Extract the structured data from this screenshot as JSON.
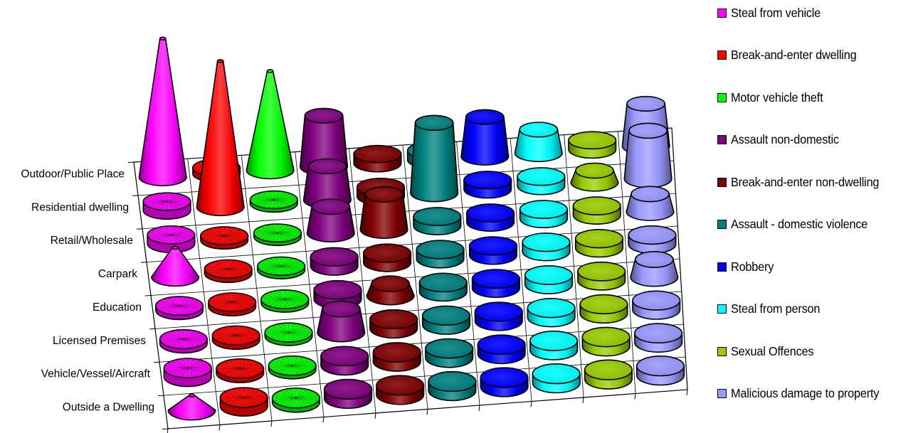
{
  "chart_data": {
    "type": "3d-column",
    "title": "",
    "xlabel": "",
    "ylabel": "",
    "categories": [
      "Outdoor/Public Place",
      "Residential dwelling",
      "Retail/Wholesale",
      "Carpark",
      "Education",
      "Licensed Premises",
      "Vehicle/Vessel/Aircraft",
      "Outside a Dwelling"
    ],
    "series": [
      {
        "name": "Steal from vehicle",
        "color": "#ff00ff",
        "shape": "cone",
        "values": [
          9.5,
          0.6,
          0.6,
          2.0,
          0.3,
          0.3,
          0.6,
          1.0
        ]
      },
      {
        "name": "Break-and-enter dwelling",
        "color": "#ff0000",
        "shape": "cone",
        "values": [
          0.4,
          10.0,
          0.3,
          0.3,
          0.3,
          0.3,
          0.3,
          0.6
        ]
      },
      {
        "name": "Motor vehicle theft",
        "color": "#00ff00",
        "shape": "cone",
        "values": [
          6.8,
          0.2,
          0.2,
          0.2,
          0.2,
          0.2,
          0.2,
          0.3
        ]
      },
      {
        "name": "Assault non-domestic",
        "color": "#800080",
        "shape": "truncated-cone",
        "values": [
          3.5,
          2.3,
          1.8,
          0.3,
          0.4,
          1.6,
          0.3,
          0.2
        ]
      },
      {
        "name": "Break-and-enter non-dwelling",
        "color": "#800000",
        "shape": "truncated-cone",
        "values": [
          0.2,
          0.3,
          2.4,
          0.3,
          0.8,
          0.3,
          0.3,
          0.2
        ]
      },
      {
        "name": "Assault - domestic violence",
        "color": "#008080",
        "shape": "truncated-cone",
        "values": [
          0.3,
          4.8,
          0.3,
          0.2,
          0.2,
          0.2,
          0.3,
          0.2
        ]
      },
      {
        "name": "Robbery",
        "color": "#0000ff",
        "shape": "truncated-cone",
        "values": [
          2.7,
          0.3,
          0.6,
          0.2,
          0.2,
          0.2,
          0.3,
          0.2
        ]
      },
      {
        "name": "Steal from person",
        "color": "#00ffff",
        "shape": "truncated-cone",
        "values": [
          1.6,
          0.2,
          0.4,
          0.2,
          0.2,
          0.2,
          0.2,
          0.2
        ]
      },
      {
        "name": "Sexual Offences",
        "color": "#99cc00",
        "shape": "truncated-cone",
        "values": [
          0.5,
          0.8,
          0.2,
          0.2,
          0.2,
          0.2,
          0.2,
          0.2
        ]
      },
      {
        "name": "Malicious damage to property",
        "color": "#9999ff",
        "shape": "truncated-cone",
        "values": [
          2.9,
          3.3,
          1.2,
          0.6,
          1.2,
          0.4,
          0.6,
          0.5
        ]
      }
    ],
    "legend_position": "right",
    "grid": true
  }
}
